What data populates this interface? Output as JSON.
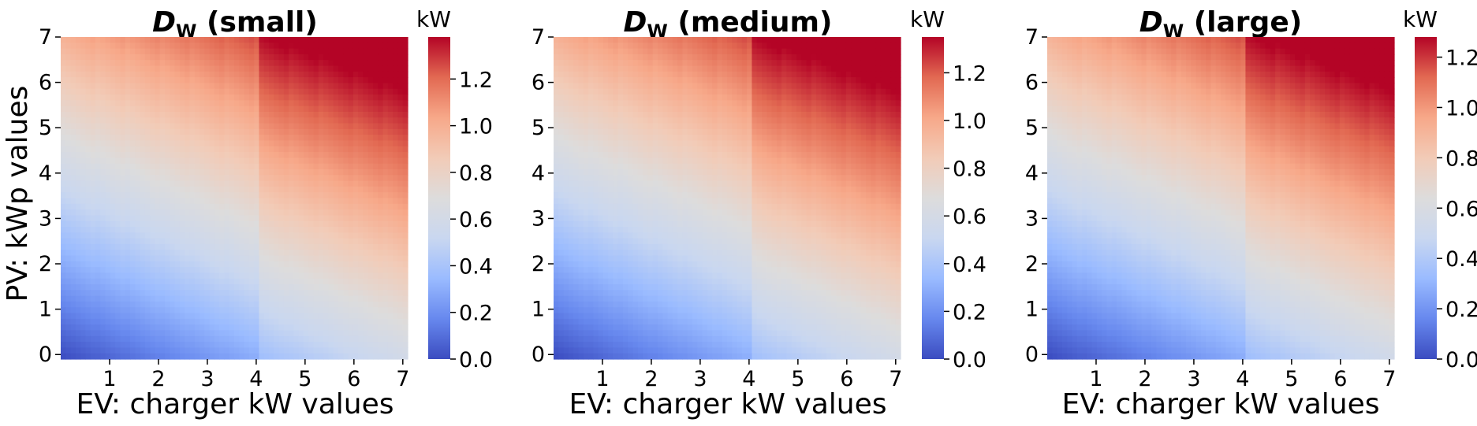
{
  "chart_data": [
    {
      "type": "heatmap",
      "title_var": "D",
      "title_sub": "W",
      "title_rest": " (small)",
      "xlabel": "EV: charger kW values",
      "ylabel": "PV: kWp values",
      "x_ticks": [
        "1",
        "2",
        "3",
        "4",
        "5",
        "6",
        "7"
      ],
      "y_ticks": [
        "0",
        "1",
        "2",
        "3",
        "4",
        "5",
        "6",
        "7"
      ],
      "xlim": [
        0,
        7.1
      ],
      "ylim": [
        -0.1,
        7.0
      ],
      "colorbar": {
        "label": "kW",
        "min": 0.0,
        "max": 1.38,
        "ticks": [
          "0.0",
          "0.2",
          "0.4",
          "0.6",
          "0.8",
          "1.0",
          "1.2"
        ],
        "tick_values": [
          0.0,
          0.2,
          0.4,
          0.6,
          0.8,
          1.0,
          1.2
        ]
      },
      "corner_values": {
        "low_ev_low_pv": 0.0,
        "high_ev_low_pv": 0.52,
        "low_ev_high_pv": 1.0,
        "high_ev_high_pv": 1.38
      },
      "step_at_ev": 4.1,
      "step_size": 0.12
    },
    {
      "type": "heatmap",
      "title_var": "D",
      "title_sub": "W",
      "title_rest": " (medium)",
      "xlabel": "EV: charger kW values",
      "ylabel": "",
      "x_ticks": [
        "1",
        "2",
        "3",
        "4",
        "5",
        "6",
        "7"
      ],
      "y_ticks": [
        "0",
        "1",
        "2",
        "3",
        "4",
        "5",
        "6",
        "7"
      ],
      "xlim": [
        0,
        7.1
      ],
      "ylim": [
        -0.1,
        7.0
      ],
      "colorbar": {
        "label": "kW",
        "min": 0.0,
        "max": 1.35,
        "ticks": [
          "0.0",
          "0.2",
          "0.4",
          "0.6",
          "0.8",
          "1.0",
          "1.2"
        ],
        "tick_values": [
          0.0,
          0.2,
          0.4,
          0.6,
          0.8,
          1.0,
          1.2
        ]
      },
      "corner_values": {
        "low_ev_low_pv": 0.0,
        "high_ev_low_pv": 0.52,
        "low_ev_high_pv": 0.98,
        "high_ev_high_pv": 1.35
      },
      "step_at_ev": 4.1,
      "step_size": 0.12
    },
    {
      "type": "heatmap",
      "title_var": "D",
      "title_sub": "W",
      "title_rest": " (large)",
      "xlabel": "EV: charger kW values",
      "ylabel": "",
      "x_ticks": [
        "1",
        "2",
        "3",
        "4",
        "5",
        "6",
        "7"
      ],
      "y_ticks": [
        "0",
        "1",
        "2",
        "3",
        "4",
        "5",
        "6",
        "7"
      ],
      "xlim": [
        0,
        7.1
      ],
      "ylim": [
        -0.1,
        7.0
      ],
      "colorbar": {
        "label": "kW",
        "min": 0.0,
        "max": 1.28,
        "ticks": [
          "0.0",
          "0.2",
          "0.4",
          "0.6",
          "0.8",
          "1.0",
          "1.2"
        ],
        "tick_values": [
          0.0,
          0.2,
          0.4,
          0.6,
          0.8,
          1.0,
          1.2
        ]
      },
      "corner_values": {
        "low_ev_low_pv": 0.0,
        "high_ev_low_pv": 0.48,
        "low_ev_high_pv": 0.92,
        "high_ev_high_pv": 1.28
      },
      "step_at_ev": 4.1,
      "step_size": 0.11
    }
  ],
  "colormap": {
    "name": "coolwarm",
    "stops": [
      "#3b4cc0",
      "#6788ee",
      "#9abbff",
      "#c9d7f0",
      "#dddcdc",
      "#f2cbb7",
      "#f7a889",
      "#e26952",
      "#b40426"
    ]
  }
}
